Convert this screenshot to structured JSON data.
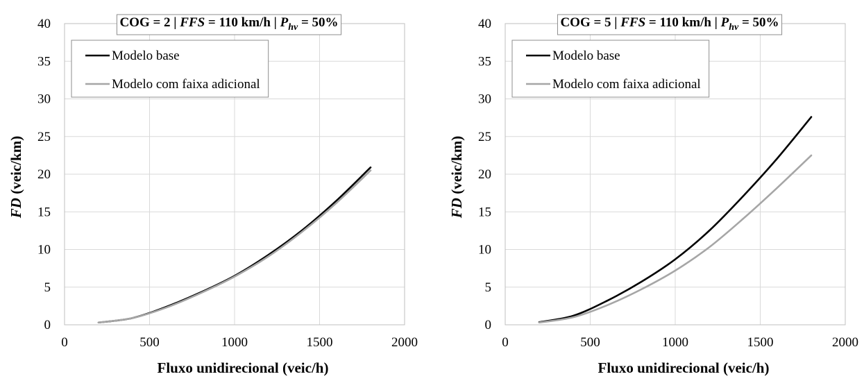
{
  "chart_data": [
    {
      "type": "line",
      "title": {
        "prefix": "COG = 2 | ",
        "ffs_label": "FFS",
        "ffs_value": " = 110 km/h | ",
        "p_label": "P",
        "p_sub": "hv",
        "p_value": " = 50%"
      },
      "xlabel": "Fluxo unidirecional (veic/h)",
      "ylabel": {
        "italic": "FD",
        "rest": " (veic/km)"
      },
      "xlim": [
        0,
        2000
      ],
      "ylim": [
        0,
        40
      ],
      "xticks": [
        "0",
        "500",
        "1000",
        "1500",
        "2000"
      ],
      "yticks": [
        "0",
        "5",
        "10",
        "15",
        "20",
        "25",
        "30",
        "35",
        "40"
      ],
      "grid": true,
      "legend_position": "top-left",
      "series": [
        {
          "name": "Modelo base",
          "color": "#000000",
          "x": [
            200,
            400,
            600,
            800,
            1000,
            1200,
            1400,
            1600,
            1800
          ],
          "y": [
            0.3,
            0.9,
            2.4,
            4.3,
            6.5,
            9.3,
            12.6,
            16.5,
            20.9
          ]
        },
        {
          "name": "Modelo com faixa adicional",
          "color": "#a6a6a6",
          "x": [
            200,
            400,
            600,
            800,
            1000,
            1200,
            1400,
            1600,
            1800
          ],
          "y": [
            0.3,
            0.9,
            2.3,
            4.2,
            6.4,
            9.1,
            12.4,
            16.2,
            20.5
          ]
        }
      ]
    },
    {
      "type": "line",
      "title": {
        "prefix": "COG = 5 | ",
        "ffs_label": "FFS",
        "ffs_value": " = 110 km/h | ",
        "p_label": "P",
        "p_sub": "hv",
        "p_value": " = 50%"
      },
      "xlabel": "Fluxo unidirecional (veic/h)",
      "ylabel": {
        "italic": "FD",
        "rest": " (veic/km)"
      },
      "xlim": [
        0,
        2000
      ],
      "ylim": [
        0,
        40
      ],
      "xticks": [
        "0",
        "500",
        "1000",
        "1500",
        "2000"
      ],
      "yticks": [
        "0",
        "5",
        "10",
        "15",
        "20",
        "25",
        "30",
        "35",
        "40"
      ],
      "grid": true,
      "legend_position": "top-left",
      "series": [
        {
          "name": "Modelo base",
          "color": "#000000",
          "x": [
            200,
            400,
            600,
            800,
            1000,
            1200,
            1400,
            1600,
            1800
          ],
          "y": [
            0.35,
            1.2,
            3.2,
            5.7,
            8.7,
            12.5,
            17.1,
            22.1,
            27.6
          ]
        },
        {
          "name": "Modelo com faixa adicional",
          "color": "#a6a6a6",
          "x": [
            200,
            400,
            600,
            800,
            1000,
            1200,
            1400,
            1600,
            1800
          ],
          "y": [
            0.3,
            1.0,
            2.6,
            4.7,
            7.2,
            10.3,
            14.1,
            18.2,
            22.5
          ]
        }
      ]
    }
  ]
}
